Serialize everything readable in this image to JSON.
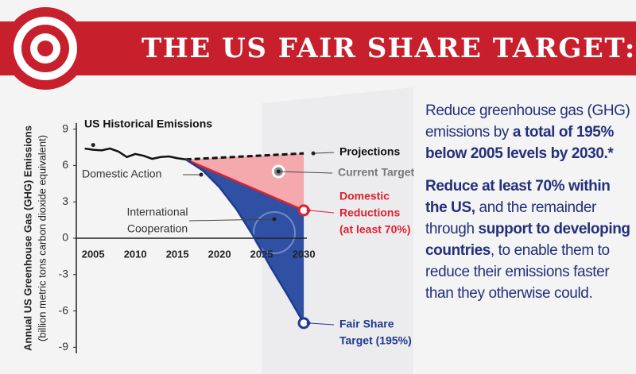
{
  "header": {
    "title": "THE US FAIR SHARE TARGET:"
  },
  "chart_data": {
    "type": "line",
    "y_label": [
      "Annual US Greenhouse Gas (GHG) Emissions",
      "(billion metric tons carbon dioxide equivalent)"
    ],
    "xlim": [
      2003,
      2031.5
    ],
    "xticks": [
      2005,
      2010,
      2015,
      2020,
      2025,
      2030
    ],
    "ylim": [
      -9.5,
      9.5
    ],
    "yticks": [
      9,
      6,
      3,
      0,
      -3,
      -6,
      -9
    ],
    "series": [
      {
        "name": "US Historical Emissions",
        "color": "#111111",
        "x": [
          2004,
          2005,
          2006,
          2007,
          2008,
          2009,
          2010,
          2011,
          2012,
          2013,
          2014,
          2015,
          2016
        ],
        "values": [
          7.4,
          7.3,
          7.25,
          7.4,
          7.15,
          6.7,
          6.95,
          6.8,
          6.55,
          6.7,
          6.75,
          6.6,
          6.5
        ]
      },
      {
        "name": "Projections",
        "color": "#111111",
        "dashed": true,
        "x": [
          2016,
          2030
        ],
        "values": [
          6.5,
          7.0
        ]
      },
      {
        "name": [
          "Domestic",
          "Reductions",
          "(at least 70%)"
        ],
        "color": "#e0202e",
        "x": [
          2016,
          2030
        ],
        "values": [
          6.5,
          2.3
        ]
      },
      {
        "name": [
          "Fair Share",
          "Target (195%)"
        ],
        "color": "#1f3a8f",
        "x": [
          2016,
          2018,
          2020,
          2022,
          2024,
          2026,
          2028,
          2030
        ],
        "values": [
          6.5,
          5.6,
          4.2,
          2.4,
          0.2,
          -2.3,
          -4.6,
          -7.0
        ]
      }
    ],
    "areas": [
      {
        "between": [
          1,
          2
        ],
        "color": "#f4a9ad"
      },
      {
        "between": [
          2,
          3
        ],
        "color": "#2f50a3"
      }
    ],
    "current_target": {
      "name": "Current Target",
      "x": 2027,
      "value": 5.5,
      "color": "#8a8a8a"
    },
    "annotations": [
      [
        "Domestic Action"
      ],
      [
        "International",
        "Cooperation"
      ]
    ]
  },
  "text": {
    "paragraphs": [
      [
        {
          "text": "Reduce greenhouse gas (GHG) emissions by ",
          "bold": false
        },
        {
          "text": "a total of 195% below 2005 levels by 2030.*",
          "bold": true
        }
      ],
      [
        {
          "text": "Reduce at least 70% within the US,",
          "bold": true
        },
        {
          "text": " and the remainder through ",
          "bold": false
        },
        {
          "text": "support to developing countries",
          "bold": true
        },
        {
          "text": ", to enable them to reduce their emissions faster than they otherwise could.",
          "bold": false
        }
      ]
    ]
  }
}
